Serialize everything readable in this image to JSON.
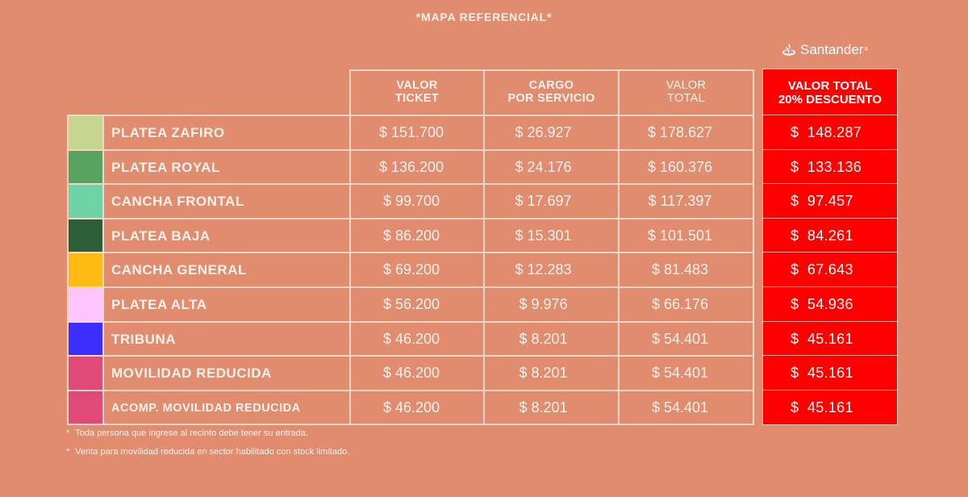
{
  "title": "*MAPA REFERENCIAL*",
  "brand": {
    "name": "Santander",
    "mark": "®",
    "icon": "flame-icon"
  },
  "colors": {
    "background": "#E18C6E",
    "discount": "#FF0000",
    "grid": "#F6D4C6"
  },
  "table": {
    "headers": [
      {
        "line1": "VALOR",
        "line2": "TICKET"
      },
      {
        "line1": "CARGO",
        "line2": "POR SERVICIO"
      },
      {
        "line1": "VALOR",
        "line2": "TOTAL"
      },
      {
        "line1": "VALOR TOTAL",
        "line2": "20% DESCUENTO"
      }
    ],
    "rows": [
      {
        "color": "#C6D68E",
        "sector": "PLATEA ZAFIRO",
        "ticket": "$ 151.700",
        "cargo": "$ 26.927",
        "total": "$ 178.627",
        "descuento": "$  148.287"
      },
      {
        "color": "#58A35F",
        "sector": "PLATEA ROYAL",
        "ticket": "$ 136.200",
        "cargo": "$ 24.176",
        "total": "$ 160.376",
        "descuento": "$  133.136"
      },
      {
        "color": "#6DD3A7",
        "sector": "CANCHA FRONTAL",
        "ticket": "$ 99.700",
        "cargo": "$ 17.697",
        "total": "$ 117.397",
        "descuento": "$  97.457"
      },
      {
        "color": "#2C5E38",
        "sector": "PLATEA BAJA",
        "ticket": "$ 86.200",
        "cargo": "$ 15.301",
        "total": "$ 101.501",
        "descuento": "$  84.261"
      },
      {
        "color": "#FFBA13",
        "sector": "CANCHA GENERAL",
        "ticket": "$ 69.200",
        "cargo": "$ 12.283",
        "total": "$ 81.483",
        "descuento": "$  67.643"
      },
      {
        "color": "#FFC3FE",
        "sector": "PLATEA ALTA",
        "ticket": "$ 56.200",
        "cargo": "$ 9.976",
        "total": "$ 66.176",
        "descuento": "$  54.936"
      },
      {
        "color": "#3B2EFF",
        "sector": "TRIBUNA",
        "ticket": "$ 46.200",
        "cargo": "$ 8.201",
        "total": "$ 54.401",
        "descuento": "$  45.161"
      },
      {
        "color": "#E04A78",
        "sector": "MOVILIDAD REDUCIDA",
        "ticket": "$ 46.200",
        "cargo": "$ 8.201",
        "total": "$ 54.401",
        "descuento": "$  45.161"
      },
      {
        "color": "#E04A78",
        "sector": "ACOMP. MOVILIDAD REDUCIDA",
        "ticket": "$ 46.200",
        "cargo": "$ 8.201",
        "total": "$ 54.401",
        "descuento": "$  45.161"
      }
    ]
  },
  "notes": [
    "Toda persona que ingrese al recinto debe tener su entrada.",
    "Venta para movilidad reducida en sector habilitado con stock limitado."
  ],
  "note_bullet": "*"
}
